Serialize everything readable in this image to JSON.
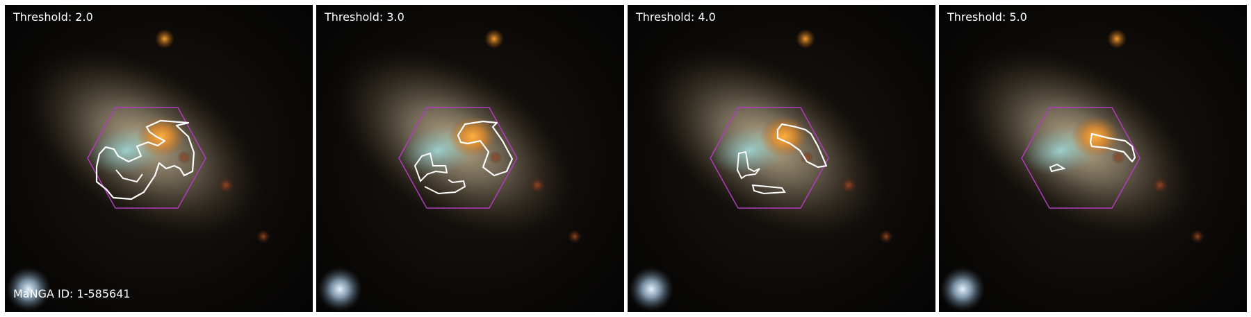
{
  "figure": {
    "panels": [
      {
        "threshold_label": "Threshold: 2.0"
      },
      {
        "threshold_label": "Threshold: 3.0"
      },
      {
        "threshold_label": "Threshold: 4.0"
      },
      {
        "threshold_label": "Threshold: 5.0"
      }
    ],
    "galaxy_id_label": "MaNGA ID: 1-585641"
  },
  "colors": {
    "ifu_hexagon": "#b23cbf",
    "contour": "#ffffff",
    "galaxy_core": "#f0a030",
    "galaxy_disk": "#b8ae9a",
    "background": "#040404"
  }
}
